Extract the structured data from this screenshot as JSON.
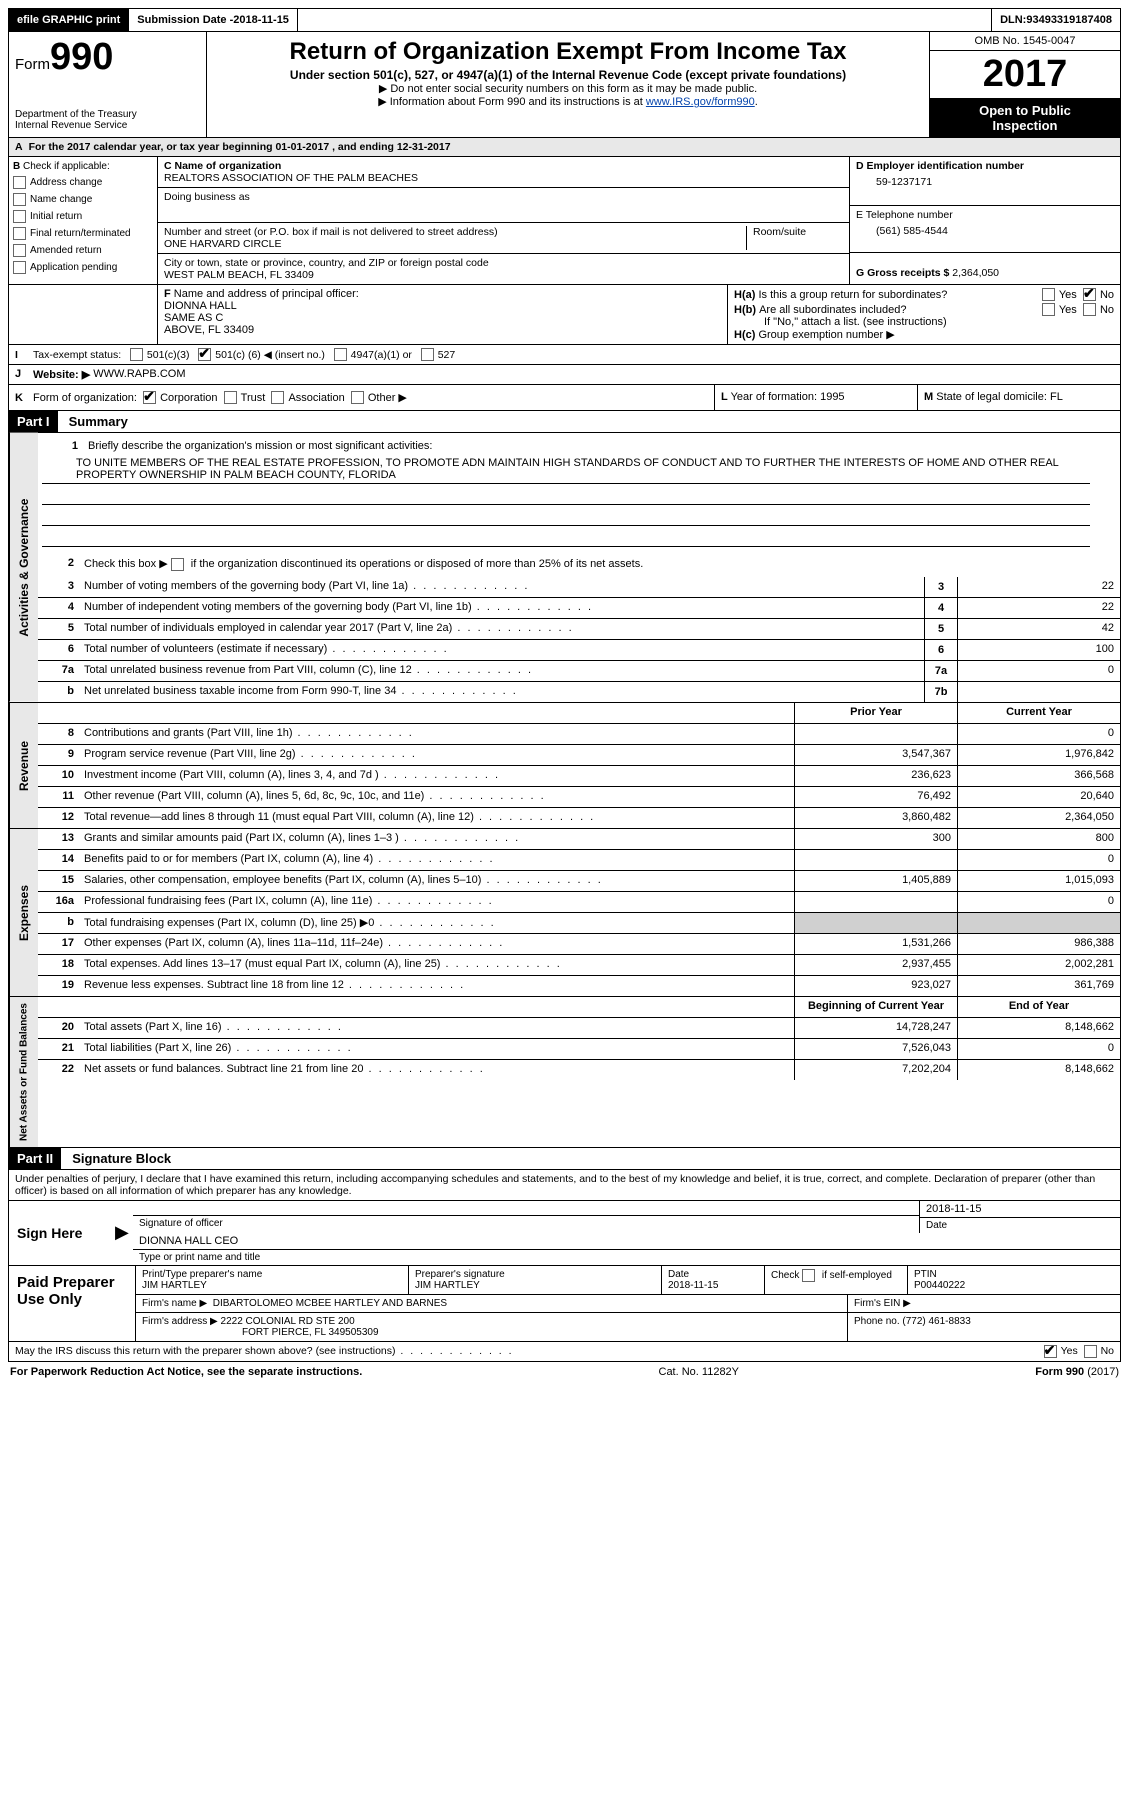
{
  "topbar": {
    "efile": "efile GRAPHIC print",
    "submission_label": "Submission Date - ",
    "submission_date": "2018-11-15",
    "dln_label": "DLN: ",
    "dln": "93493319187408"
  },
  "header": {
    "form_word": "Form",
    "form_num": "990",
    "dept1": "Department of the Treasury",
    "dept2": "Internal Revenue Service",
    "title": "Return of Organization Exempt From Income Tax",
    "subtitle": "Under section 501(c), 527, or 4947(a)(1) of the Internal Revenue Code (except private foundations)",
    "note1": "▶ Do not enter social security numbers on this form as it may be made public.",
    "note2_pre": "▶ Information about Form 990 and its instructions is at ",
    "note2_link": "www.IRS.gov/form990",
    "omb": "OMB No. 1545-0047",
    "year": "2017",
    "open1": "Open to Public",
    "open2": "Inspection"
  },
  "a_line": {
    "label": "A",
    "text_pre": "For the 2017 calendar year, or tax year beginning ",
    "begin": "01-01-2017",
    "mid": "  , and ending ",
    "end": "12-31-2017"
  },
  "b": {
    "label": "B",
    "check_label": "Check if applicable:",
    "items": [
      "Address change",
      "Name change",
      "Initial return",
      "Final return/terminated",
      "Amended return",
      "Application pending"
    ]
  },
  "c": {
    "name_label": "C Name of organization",
    "name": "REALTORS ASSOCIATION OF THE PALM BEACHES",
    "dba_label": "Doing business as",
    "dba": "",
    "street_label": "Number and street (or P.O. box if mail is not delivered to street address)",
    "room_label": "Room/suite",
    "street": "ONE HARVARD CIRCLE",
    "city_label": "City or town, state or province, country, and ZIP or foreign postal code",
    "city": "WEST PALM BEACH, FL  33409"
  },
  "d": {
    "label": "D Employer identification number",
    "ein": "59-1237171",
    "e_label": "E Telephone number",
    "phone": "(561) 585-4544",
    "g_label": "G Gross receipts $ ",
    "gross": "2,364,050"
  },
  "f": {
    "label": "F",
    "text": "Name and address of principal officer:",
    "name": "DIONNA HALL",
    "addr1": "SAME AS C",
    "addr2": "ABOVE, FL  33409"
  },
  "h": {
    "a_label": "H(a)",
    "a_text": "Is this a group return for subordinates?",
    "b_label": "H(b)",
    "b_text": "Are all subordinates included?",
    "b_note": "If \"No,\" attach a list. (see instructions)",
    "c_label": "H(c)",
    "c_text": "Group exemption number ▶",
    "yes": "Yes",
    "no": "No"
  },
  "i": {
    "label": "I",
    "text": "Tax-exempt status:",
    "opt1": "501(c)(3)",
    "opt2a": "501(c) (",
    "opt2_num": "6",
    "opt2b": ") ◀ (insert no.)",
    "opt3": "4947(a)(1) or",
    "opt4": "527"
  },
  "j": {
    "label": "J",
    "text": "Website: ▶",
    "site": "WWW.RAPB.COM"
  },
  "k": {
    "label": "K",
    "text": "Form of organization:",
    "opts": [
      "Corporation",
      "Trust",
      "Association",
      "Other ▶"
    ],
    "l_label": "L",
    "l_text": "Year of formation: ",
    "l_val": "1995",
    "m_label": "M",
    "m_text": "State of legal domicile: ",
    "m_val": "FL"
  },
  "part1": {
    "header": "Part I",
    "title": "Summary",
    "q1_num": "1",
    "q1": "Briefly describe the organization's mission or most significant activities:",
    "mission": "TO UNITE MEMBERS OF THE REAL ESTATE PROFESSION, TO PROMOTE ADN MAINTAIN HIGH STANDARDS OF CONDUCT AND TO FURTHER THE INTERESTS OF HOME AND OTHER REAL PROPERTY OWNERSHIP IN PALM BEACH COUNTY, FLORIDA",
    "q2_num": "2",
    "q2": "Check this box ▶       if the organization discontinued its operations or disposed of more than 25% of its net assets.",
    "vtab_gov": "Activities & Governance",
    "vtab_rev": "Revenue",
    "vtab_exp": "Expenses",
    "vtab_net": "Net Assets or Fund Balances",
    "col_prior": "Prior Year",
    "col_current": "Current Year",
    "col_begin": "Beginning of Current Year",
    "col_end": "End of Year",
    "gov_lines": [
      {
        "n": "3",
        "d": "Number of voting members of the governing body (Part VI, line 1a)",
        "box": "3",
        "v": "22"
      },
      {
        "n": "4",
        "d": "Number of independent voting members of the governing body (Part VI, line 1b)",
        "box": "4",
        "v": "22"
      },
      {
        "n": "5",
        "d": "Total number of individuals employed in calendar year 2017 (Part V, line 2a)",
        "box": "5",
        "v": "42"
      },
      {
        "n": "6",
        "d": "Total number of volunteers (estimate if necessary)",
        "box": "6",
        "v": "100"
      },
      {
        "n": "7a",
        "d": "Total unrelated business revenue from Part VIII, column (C), line 12",
        "box": "7a",
        "v": "0"
      },
      {
        "n": "b",
        "d": "Net unrelated business taxable income from Form 990-T, line 34",
        "box": "7b",
        "v": ""
      }
    ],
    "rev_lines": [
      {
        "n": "8",
        "d": "Contributions and grants (Part VIII, line 1h)",
        "p": "",
        "c": "0"
      },
      {
        "n": "9",
        "d": "Program service revenue (Part VIII, line 2g)",
        "p": "3,547,367",
        "c": "1,976,842"
      },
      {
        "n": "10",
        "d": "Investment income (Part VIII, column (A), lines 3, 4, and 7d )",
        "p": "236,623",
        "c": "366,568"
      },
      {
        "n": "11",
        "d": "Other revenue (Part VIII, column (A), lines 5, 6d, 8c, 9c, 10c, and 11e)",
        "p": "76,492",
        "c": "20,640"
      },
      {
        "n": "12",
        "d": "Total revenue—add lines 8 through 11 (must equal Part VIII, column (A), line 12)",
        "p": "3,860,482",
        "c": "2,364,050"
      }
    ],
    "exp_lines": [
      {
        "n": "13",
        "d": "Grants and similar amounts paid (Part IX, column (A), lines 1–3 )",
        "p": "300",
        "c": "800"
      },
      {
        "n": "14",
        "d": "Benefits paid to or for members (Part IX, column (A), line 4)",
        "p": "",
        "c": "0"
      },
      {
        "n": "15",
        "d": "Salaries, other compensation, employee benefits (Part IX, column (A), lines 5–10)",
        "p": "1,405,889",
        "c": "1,015,093"
      },
      {
        "n": "16a",
        "d": "Professional fundraising fees (Part IX, column (A), line 11e)",
        "p": "",
        "c": "0"
      },
      {
        "n": "b",
        "d": "Total fundraising expenses (Part IX, column (D), line 25) ▶0",
        "p": "GREY",
        "c": "GREY"
      },
      {
        "n": "17",
        "d": "Other expenses (Part IX, column (A), lines 11a–11d, 11f–24e)",
        "p": "1,531,266",
        "c": "986,388"
      },
      {
        "n": "18",
        "d": "Total expenses. Add lines 13–17 (must equal Part IX, column (A), line 25)",
        "p": "2,937,455",
        "c": "2,002,281"
      },
      {
        "n": "19",
        "d": "Revenue less expenses. Subtract line 18 from line 12",
        "p": "923,027",
        "c": "361,769"
      }
    ],
    "net_lines": [
      {
        "n": "20",
        "d": "Total assets (Part X, line 16)",
        "p": "14,728,247",
        "c": "8,148,662"
      },
      {
        "n": "21",
        "d": "Total liabilities (Part X, line 26)",
        "p": "7,526,043",
        "c": "0"
      },
      {
        "n": "22",
        "d": "Net assets or fund balances. Subtract line 21 from line 20",
        "p": "7,202,204",
        "c": "8,148,662"
      }
    ]
  },
  "part2": {
    "header": "Part II",
    "title": "Signature Block",
    "decl": "Under penalties of perjury, I declare that I have examined this return, including accompanying schedules and statements, and to the best of my knowledge and belief, it is true, correct, and complete. Declaration of preparer (other than officer) is based on all information of which preparer has any knowledge.",
    "sign_here": "Sign Here",
    "sig_officer": "Signature of officer",
    "sig_date_label": "Date",
    "sig_date": "2018-11-15",
    "officer_name": "DIONNA HALL  CEO",
    "name_title_label": "Type or print name and title"
  },
  "prep": {
    "label": "Paid Preparer Use Only",
    "name_label": "Print/Type preparer's name",
    "name": "JIM HARTLEY",
    "sig_label": "Preparer's signature",
    "sig": "JIM HARTLEY",
    "date_label": "Date",
    "date": "2018-11-15",
    "check_label": "Check       if self-employed",
    "ptin_label": "PTIN",
    "ptin": "P00440222",
    "firm_name_label": "Firm's name    ▶",
    "firm_name": "DIBARTOLOMEO MCBEE HARTLEY AND BARNES",
    "firm_ein_label": "Firm's EIN ▶",
    "firm_addr_label": "Firm's address ▶",
    "firm_addr1": "2222 COLONIAL RD STE 200",
    "firm_addr2": "FORT PIERCE, FL  349505309",
    "phone_label": "Phone no. ",
    "phone": "(772) 461-8833"
  },
  "discuss": {
    "text": "May the IRS discuss this return with the preparer shown above? (see instructions)",
    "yes": "Yes",
    "no": "No"
  },
  "footer": {
    "left": "For Paperwork Reduction Act Notice, see the separate instructions.",
    "mid": "Cat. No. 11282Y",
    "right_pre": "Form ",
    "right_form": "990",
    "right_post": " (2017)"
  }
}
